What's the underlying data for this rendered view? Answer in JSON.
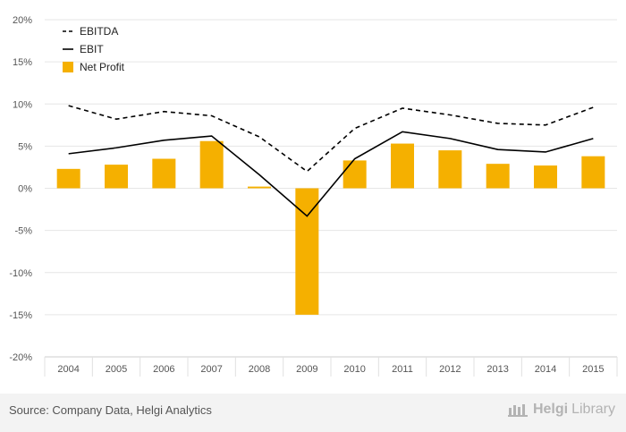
{
  "chart_data": {
    "type": "bar",
    "categories": [
      "2004",
      "2005",
      "2006",
      "2007",
      "2008",
      "2009",
      "2010",
      "2011",
      "2012",
      "2013",
      "2014",
      "2015"
    ],
    "series": [
      {
        "name": "EBITDA",
        "kind": "line",
        "style": "dashed",
        "color": "#000000",
        "values": [
          9.8,
          8.2,
          9.1,
          8.6,
          6.1,
          2.0,
          7.1,
          9.5,
          8.7,
          7.7,
          7.5,
          9.6
        ]
      },
      {
        "name": "EBIT",
        "kind": "line",
        "style": "solid",
        "color": "#000000",
        "values": [
          4.1,
          4.8,
          5.7,
          6.2,
          1.6,
          -3.3,
          3.5,
          6.7,
          5.9,
          4.6,
          4.3,
          5.9
        ]
      },
      {
        "name": "Net Profit",
        "kind": "bar",
        "color": "#f5b000",
        "values": [
          2.3,
          2.8,
          3.5,
          5.6,
          0.2,
          -15.0,
          3.3,
          5.3,
          4.5,
          2.9,
          2.7,
          3.8
        ]
      }
    ],
    "ylim": [
      -20,
      20
    ],
    "yticks": [
      -20,
      -15,
      -10,
      -5,
      0,
      5,
      10,
      15,
      20
    ],
    "ytick_labels": [
      "-20%",
      "-15%",
      "-10%",
      "-5%",
      "0%",
      "5%",
      "10%",
      "15%",
      "20%"
    ],
    "grid": true,
    "legend_position": "top-left"
  },
  "footer": {
    "source": "Source: Company Data, Helgi Analytics",
    "brand_bold": "Helgi",
    "brand_light": "Library"
  }
}
